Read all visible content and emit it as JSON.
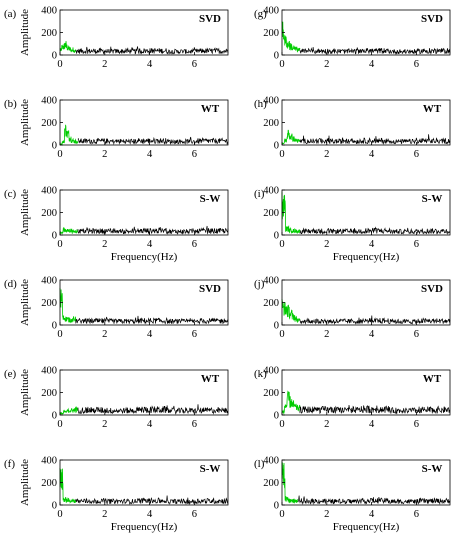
{
  "chart_data": [
    {
      "type": "line",
      "panel_label": "(a)",
      "method_label": "SVD",
      "ylabel": "Amplitude",
      "xlabel": "",
      "ylim": [
        0,
        400
      ],
      "xlim": [
        0,
        7.5
      ],
      "yticks": [
        "0",
        "200",
        "400"
      ],
      "xticks": [
        "0",
        "2",
        "4",
        "6"
      ],
      "green_x_end": 0.7,
      "green_amplitude": 130,
      "black_amplitude": 45,
      "grid": false,
      "series": [
        {
          "color": "#00cc00",
          "values": [
            60,
            95,
            110,
            130,
            105,
            85,
            75,
            60,
            70,
            55
          ]
        },
        {
          "color": "#000000",
          "values": [
            45,
            42,
            48,
            40,
            46
          ]
        }
      ]
    },
    {
      "type": "line",
      "panel_label": "(b)",
      "method_label": "WT",
      "ylabel": "Amplitude",
      "xlabel": "",
      "ylim": [
        0,
        400
      ],
      "xlim": [
        0,
        7.5
      ],
      "yticks": [
        "0",
        "200",
        "400"
      ],
      "xticks": [
        "0",
        "2",
        "4",
        "6"
      ],
      "green_x_end": 0.8,
      "green_amplitude": 160,
      "black_amplitude": 45,
      "grid": false,
      "series": [
        {
          "color": "#00cc00",
          "values": [
            10,
            40,
            200,
            140,
            90,
            60,
            50,
            40
          ]
        },
        {
          "color": "#000000",
          "values": [
            45,
            42,
            48,
            40,
            46
          ]
        }
      ]
    },
    {
      "type": "line",
      "panel_label": "(c)",
      "method_label": "S-W",
      "ylabel": "Amplitude",
      "xlabel": "Frequency(Hz)",
      "ylim": [
        0,
        400
      ],
      "xlim": [
        0,
        7.5
      ],
      "yticks": [
        "0",
        "200",
        "400"
      ],
      "xticks": [
        "0",
        "2",
        "4",
        "6"
      ],
      "green_x_end": 0.8,
      "green_amplitude": 70,
      "black_amplitude": 45,
      "grid": false,
      "series": [
        {
          "color": "#00cc00",
          "values": [
            30,
            70,
            55,
            60,
            45,
            50
          ]
        },
        {
          "color": "#000000",
          "values": [
            45,
            42,
            48,
            40,
            46
          ]
        }
      ]
    },
    {
      "type": "line",
      "panel_label": "(d)",
      "method_label": "SVD",
      "ylabel": "Amplitude",
      "xlabel": "",
      "ylim": [
        0,
        400
      ],
      "xlim": [
        0,
        7.5
      ],
      "yticks": [
        "0",
        "200",
        "400"
      ],
      "xticks": [
        "0",
        "2",
        "4",
        "6"
      ],
      "green_x_end": 0.7,
      "green_amplitude": 90,
      "black_amplitude": 45,
      "grid": false,
      "series": [
        {
          "color": "#00cc00",
          "values": [
            330,
            90,
            80,
            70,
            60,
            75
          ]
        },
        {
          "color": "#000000",
          "values": [
            45,
            42,
            48,
            40,
            46
          ]
        }
      ]
    },
    {
      "type": "line",
      "panel_label": "(e)",
      "method_label": "WT",
      "ylabel": "Amplitude",
      "xlabel": "",
      "ylim": [
        0,
        400
      ],
      "xlim": [
        0,
        7.5
      ],
      "yticks": [
        "0",
        "200",
        "400"
      ],
      "xticks": [
        "0",
        "2",
        "4",
        "6"
      ],
      "green_x_end": 0.8,
      "green_amplitude": 60,
      "black_amplitude": 55,
      "grid": false,
      "series": [
        {
          "color": "#00cc00",
          "values": [
            20,
            40,
            55,
            60,
            70
          ]
        },
        {
          "color": "#000000",
          "values": [
            55,
            50,
            60,
            48,
            52
          ]
        }
      ]
    },
    {
      "type": "line",
      "panel_label": "(f)",
      "method_label": "S-W",
      "ylabel": "Amplitude",
      "xlabel": "Frequency(Hz)",
      "ylim": [
        0,
        400
      ],
      "xlim": [
        0,
        7.5
      ],
      "yticks": [
        "0",
        "200",
        "400"
      ],
      "xticks": [
        "0",
        "2",
        "4",
        "6"
      ],
      "green_x_end": 0.7,
      "green_amplitude": 60,
      "black_amplitude": 45,
      "grid": false,
      "series": [
        {
          "color": "#00cc00",
          "values": [
            330,
            70,
            60,
            55,
            50
          ]
        },
        {
          "color": "#000000",
          "values": [
            45,
            42,
            48,
            40,
            46
          ]
        }
      ]
    },
    {
      "type": "line",
      "panel_label": "(g)",
      "method_label": "SVD",
      "ylabel": "",
      "xlabel": "",
      "ylim": [
        0,
        400
      ],
      "xlim": [
        0,
        7.5
      ],
      "yticks": [
        "0",
        "200",
        "400"
      ],
      "xticks": [
        "0",
        "2",
        "4",
        "6"
      ],
      "green_x_end": 0.8,
      "green_amplitude": 150,
      "black_amplitude": 45,
      "grid": false,
      "series": [
        {
          "color": "#00cc00",
          "values": [
            300,
            180,
            140,
            110,
            90,
            75,
            65
          ]
        },
        {
          "color": "#000000",
          "values": [
            45,
            42,
            48,
            40,
            46
          ]
        }
      ]
    },
    {
      "type": "line",
      "panel_label": "(h)",
      "method_label": "WT",
      "ylabel": "",
      "xlabel": "",
      "ylim": [
        0,
        400
      ],
      "xlim": [
        0,
        7.5
      ],
      "yticks": [
        "0",
        "200",
        "400"
      ],
      "xticks": [
        "0",
        "2",
        "4",
        "6"
      ],
      "green_x_end": 0.8,
      "green_amplitude": 110,
      "black_amplitude": 45,
      "grid": false,
      "series": [
        {
          "color": "#00cc00",
          "values": [
            20,
            60,
            140,
            110,
            80,
            60,
            50
          ]
        },
        {
          "color": "#000000",
          "values": [
            45,
            42,
            48,
            40,
            46
          ]
        }
      ]
    },
    {
      "type": "line",
      "panel_label": "(i)",
      "method_label": "S-W",
      "ylabel": "",
      "xlabel": "Frequency(Hz)",
      "ylim": [
        0,
        400
      ],
      "xlim": [
        0,
        7.5
      ],
      "yticks": [
        "0",
        "200",
        "400"
      ],
      "xticks": [
        "0",
        "2",
        "4",
        "6"
      ],
      "green_x_end": 0.8,
      "green_amplitude": 60,
      "black_amplitude": 45,
      "grid": false,
      "series": [
        {
          "color": "#00cc00",
          "values": [
            380,
            80,
            60,
            55,
            50
          ]
        },
        {
          "color": "#000000",
          "values": [
            45,
            42,
            48,
            40,
            46
          ]
        }
      ]
    },
    {
      "type": "line",
      "panel_label": "(j)",
      "method_label": "SVD",
      "ylabel": "",
      "xlabel": "",
      "ylim": [
        0,
        400
      ],
      "xlim": [
        0,
        7.5
      ],
      "yticks": [
        "0",
        "200",
        "400"
      ],
      "xticks": [
        "0",
        "2",
        "4",
        "6"
      ],
      "green_x_end": 0.8,
      "green_amplitude": 190,
      "black_amplitude": 45,
      "grid": false,
      "series": [
        {
          "color": "#00cc00",
          "values": [
            230,
            210,
            180,
            140,
            110,
            80,
            60
          ]
        },
        {
          "color": "#000000",
          "values": [
            45,
            42,
            48,
            40,
            46
          ]
        }
      ]
    },
    {
      "type": "line",
      "panel_label": "(k)",
      "method_label": "WT",
      "ylabel": "",
      "xlabel": "",
      "ylim": [
        0,
        400
      ],
      "xlim": [
        0,
        7.5
      ],
      "yticks": [
        "0",
        "200",
        "400"
      ],
      "xticks": [
        "0",
        "2",
        "4",
        "6"
      ],
      "green_x_end": 0.8,
      "green_amplitude": 170,
      "black_amplitude": 60,
      "grid": false,
      "series": [
        {
          "color": "#00cc00",
          "values": [
            40,
            120,
            210,
            170,
            130,
            100,
            90
          ]
        },
        {
          "color": "#000000",
          "values": [
            60,
            55,
            65,
            50,
            58
          ]
        }
      ]
    },
    {
      "type": "line",
      "panel_label": "(l)",
      "method_label": "S-W",
      "ylabel": "",
      "xlabel": "Frequency(Hz)",
      "ylim": [
        0,
        400
      ],
      "xlim": [
        0,
        7.5
      ],
      "yticks": [
        "0",
        "200",
        "400"
      ],
      "xticks": [
        "0",
        "2",
        "4",
        "6"
      ],
      "green_x_end": 0.7,
      "green_amplitude": 60,
      "black_amplitude": 45,
      "grid": false,
      "series": [
        {
          "color": "#00cc00",
          "values": [
            380,
            80,
            60,
            55,
            50
          ]
        },
        {
          "color": "#000000",
          "values": [
            45,
            42,
            48,
            40,
            46
          ]
        }
      ]
    }
  ]
}
